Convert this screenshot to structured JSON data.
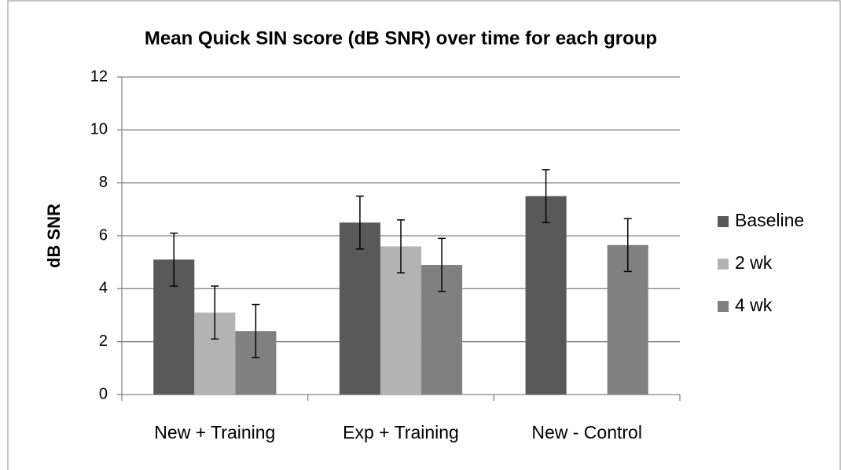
{
  "chart_data": {
    "type": "bar",
    "title": "Mean Quick SIN score (dB SNR) over time for each group",
    "ylabel": "dB SNR",
    "categories": [
      "New + Training",
      "Exp + Training",
      "New - Control"
    ],
    "series": [
      {
        "name": "Baseline",
        "color": "#595959",
        "values": [
          5.1,
          6.5,
          7.5
        ],
        "errors": [
          1,
          1,
          1
        ]
      },
      {
        "name": "2 wk",
        "color": "#b3b3b3",
        "values": [
          3.1,
          5.6,
          null
        ],
        "errors": [
          1,
          1,
          null
        ]
      },
      {
        "name": "4 wk",
        "color": "#808080",
        "values": [
          2.4,
          4.9,
          5.65
        ],
        "errors": [
          1,
          1,
          1
        ]
      }
    ],
    "ylim": [
      0,
      12
    ],
    "yticks": [
      0,
      2,
      4,
      6,
      8,
      10,
      12
    ],
    "grid": true,
    "legend": "right"
  }
}
